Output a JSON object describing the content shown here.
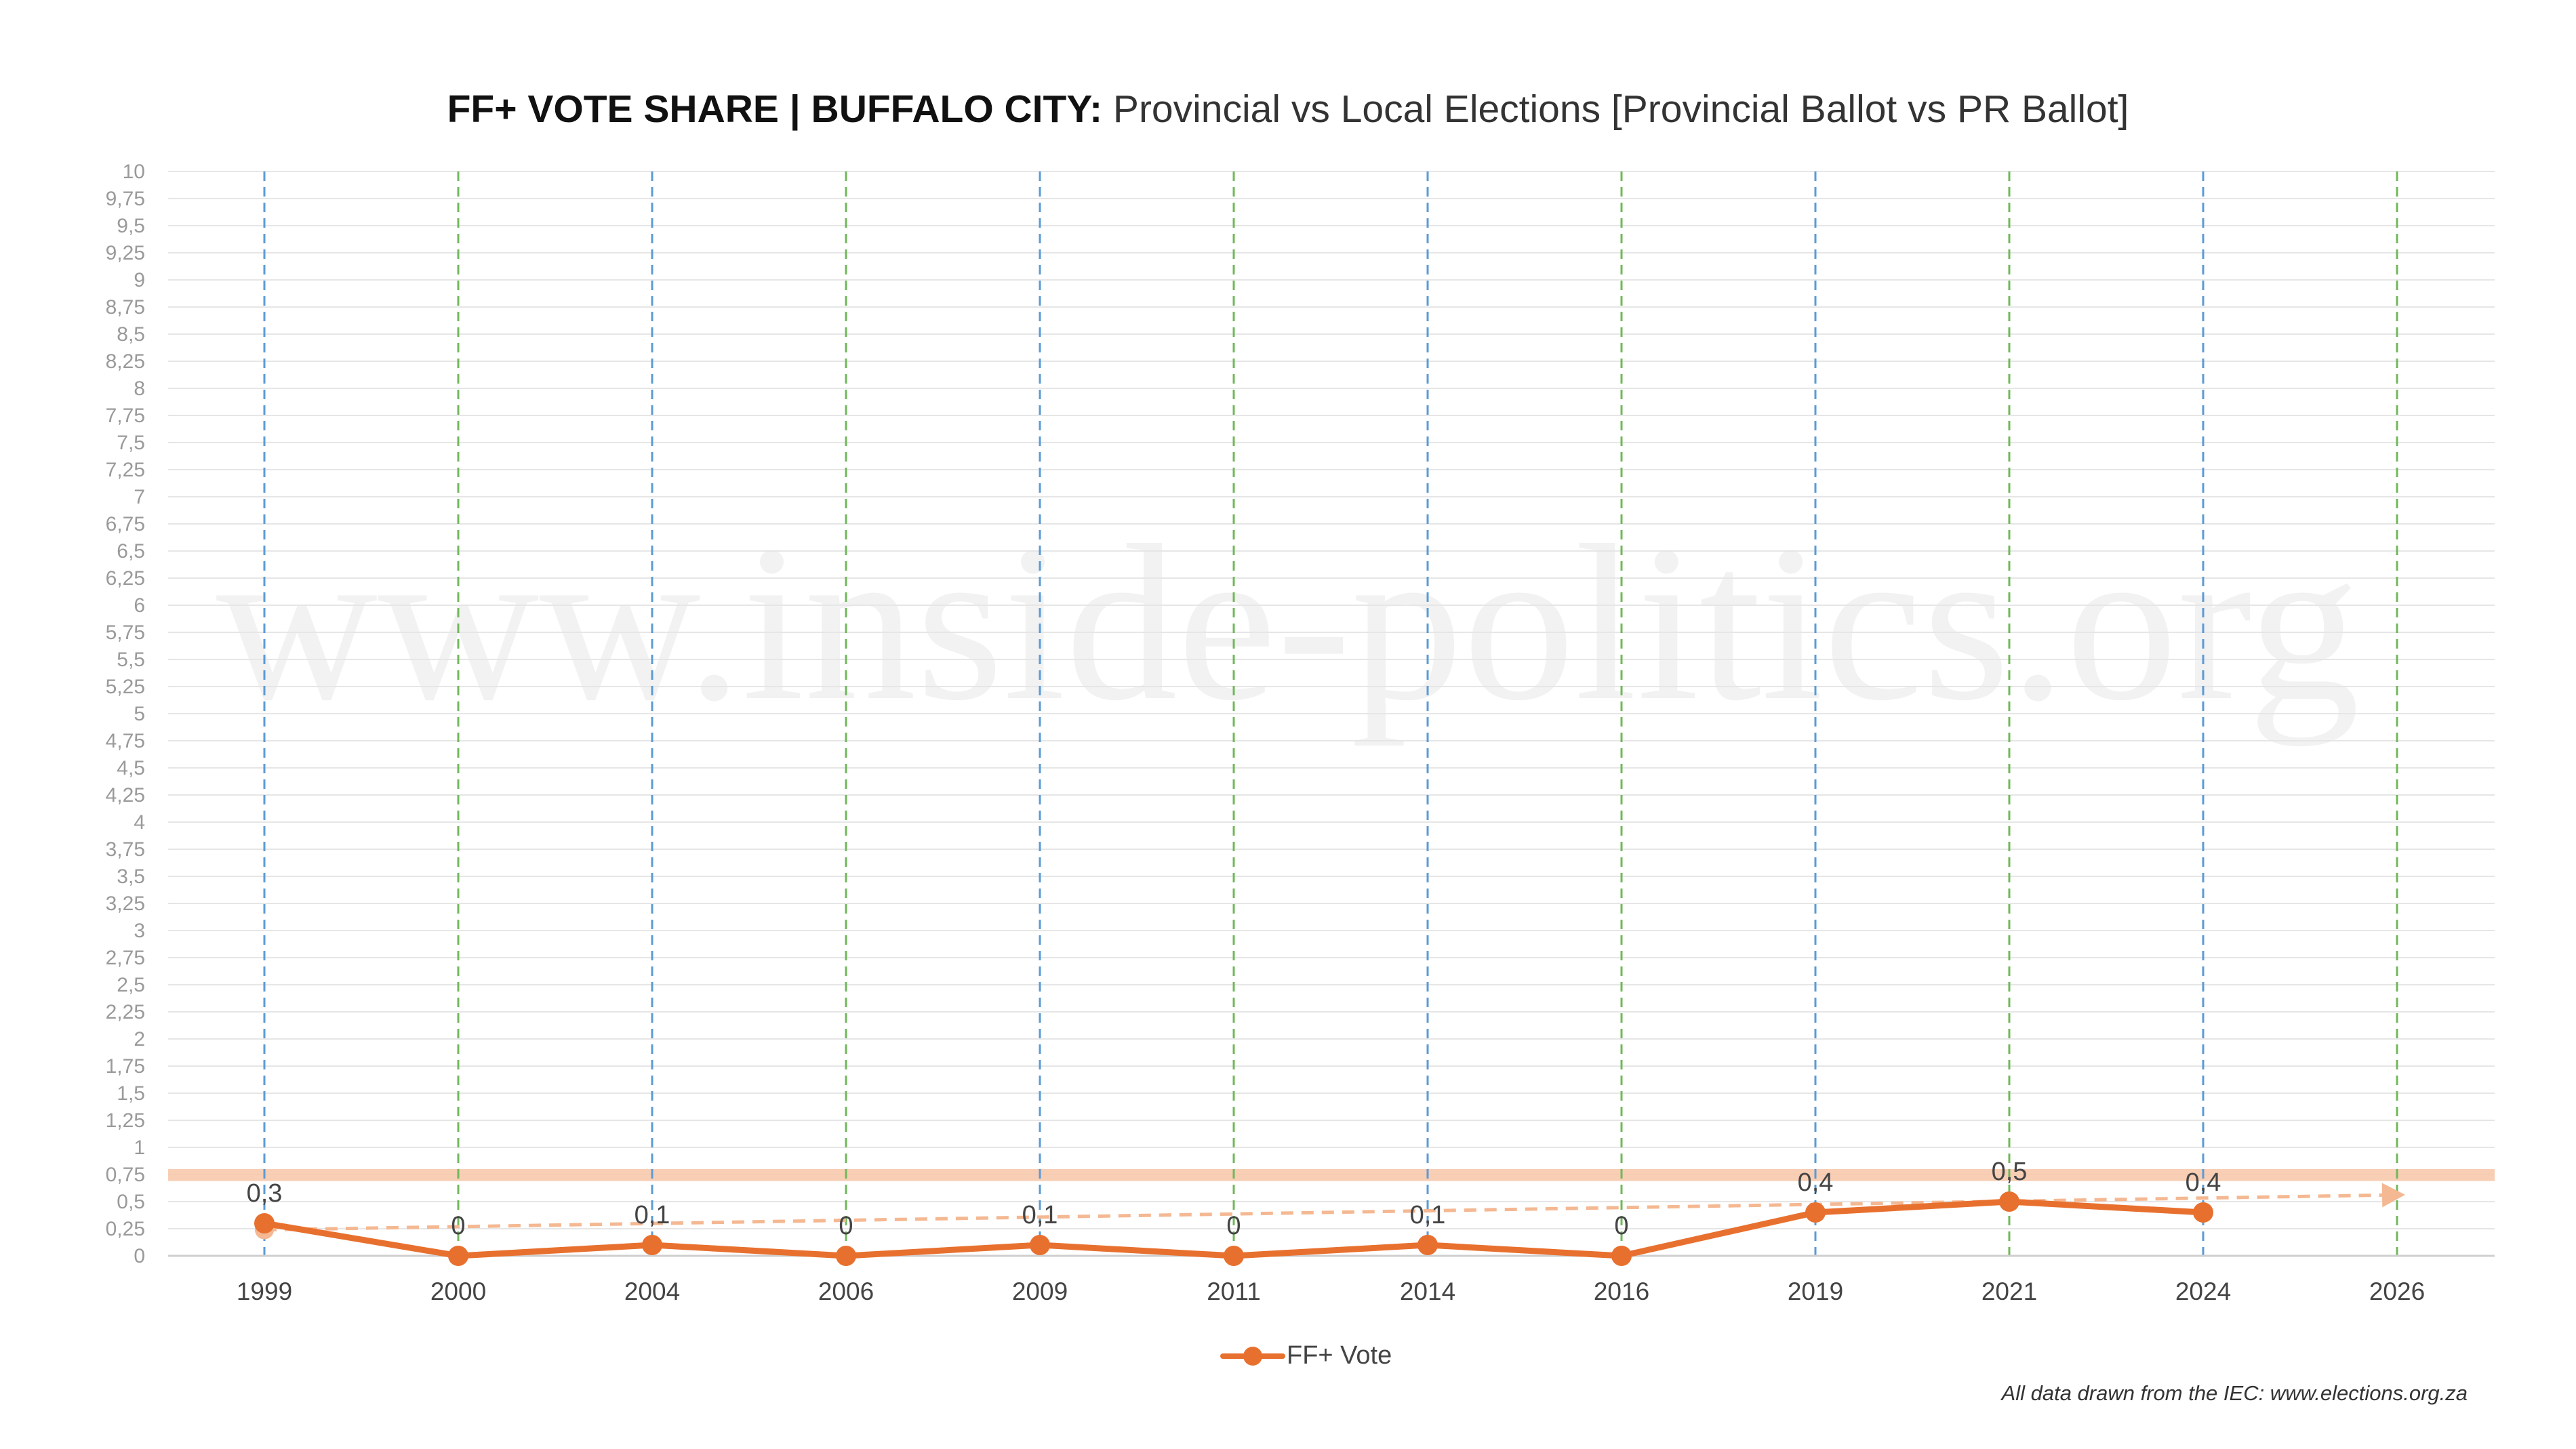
{
  "title": {
    "bold": "FF+ VOTE SHARE | BUFFALO CITY:",
    "rest": " Provincial vs Local Elections [Provincial Ballot vs PR Ballot]"
  },
  "watermark": "www.inside-politics.org",
  "source_note": "All data drawn from the IEC: www.elections.org.za",
  "colors": {
    "series": "#e8702f",
    "trend": "#f4b892",
    "provincial_marker": "#5b9bd5",
    "local_marker": "#70b85a",
    "threshold_band": "#f7c6a8",
    "grid": "#e6e6e6"
  },
  "chart_data": {
    "type": "line",
    "categories": [
      "1999",
      "2000",
      "2004",
      "2006",
      "2009",
      "2011",
      "2014",
      "2016",
      "2019",
      "2021",
      "2024",
      "2026"
    ],
    "series": [
      {
        "name": "FF+ Vote",
        "values": [
          0.3,
          0,
          0.1,
          0,
          0.1,
          0,
          0.1,
          0,
          0.4,
          0.5,
          0.4,
          null
        ],
        "labels": [
          "0,3",
          "0",
          "0,1",
          "0",
          "0,1",
          "0",
          "0,1",
          "0",
          "0,4",
          "0,5",
          "0,4",
          ""
        ]
      }
    ],
    "trendline": {
      "type": "linear",
      "from_category": "1999",
      "to_category": "2026",
      "start_value": 0.24,
      "end_value": 0.56,
      "style": "dashed-arrow"
    },
    "threshold_band": {
      "value_low": 0.69,
      "value_high": 0.8
    },
    "vertical_markers": {
      "provincial": [
        "1999",
        "2004",
        "2009",
        "2014",
        "2019",
        "2024"
      ],
      "local": [
        "2000",
        "2006",
        "2011",
        "2016",
        "2021",
        "2026"
      ]
    },
    "ylim": [
      0,
      10
    ],
    "ytick_step": 0.25,
    "ytick_labels": [
      "0",
      "0,25",
      "0,5",
      "0,75",
      "1",
      "1,25",
      "1,5",
      "1,75",
      "2",
      "2,25",
      "2,5",
      "2,75",
      "3",
      "3,25",
      "3,5",
      "3,75",
      "4",
      "4,25",
      "4,5",
      "4,75",
      "5",
      "5,25",
      "5,5",
      "5,75",
      "6",
      "6,25",
      "6,5",
      "6,75",
      "7",
      "7,25",
      "7,5",
      "7,75",
      "8",
      "8,25",
      "8,5",
      "8,75",
      "9",
      "9,25",
      "9,5",
      "9,75",
      "10"
    ],
    "grid": true,
    "legend_position": "bottom-center",
    "title": "FF+ VOTE SHARE | BUFFALO CITY: Provincial vs Local Elections [Provincial Ballot vs PR Ballot]",
    "xlabel": "",
    "ylabel": ""
  }
}
